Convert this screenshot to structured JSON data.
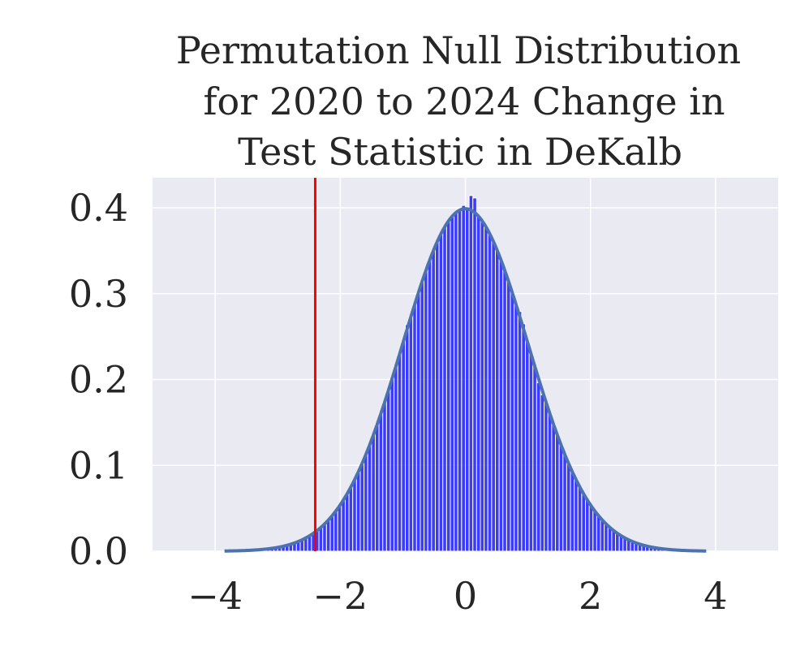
{
  "chart_data": {
    "type": "bar",
    "title_lines": [
      "Permutation Null Distribution",
      "for 2020 to 2024 Change in",
      "Test Statistic in DeKalb"
    ],
    "xlabel": "",
    "ylabel": "",
    "xlim": [
      -5,
      5
    ],
    "ylim": [
      0,
      0.435
    ],
    "x_ticks": [
      -4,
      -2,
      0,
      2,
      4
    ],
    "x_tick_labels": [
      "−4",
      "−2",
      "0",
      "2",
      "4"
    ],
    "y_ticks": [
      0.0,
      0.1,
      0.2,
      0.3,
      0.4
    ],
    "y_tick_labels": [
      "0.0",
      "0.1",
      "0.2",
      "0.3",
      "0.4"
    ],
    "grid": true,
    "histogram": {
      "range": [
        -3.9,
        3.9
      ],
      "bin_width": 0.06,
      "bumps": [
        [
          -0.06,
          0.004
        ],
        [
          0.0,
          0.006
        ],
        [
          0.06,
          0.012
        ],
        [
          0.12,
          0.017
        ],
        [
          0.18,
          0.009
        ],
        [
          0.3,
          0.004
        ],
        [
          -1.08,
          -0.008
        ],
        [
          -0.9,
          0.005
        ],
        [
          0.9,
          0.006
        ],
        [
          1.2,
          -0.005
        ]
      ]
    },
    "density_curve": {
      "mean": 0,
      "sd": 1,
      "x_range": [
        -3.85,
        3.85
      ]
    },
    "observed_line": {
      "x": -2.4
    },
    "colors": {
      "background": "#eaeaf2",
      "grid": "#ffffff",
      "bars": "#0000ff",
      "bar_edge": "#ffffff",
      "curve": "#4c72b0",
      "observed_line": "#ff0000",
      "text": "#262626"
    }
  }
}
